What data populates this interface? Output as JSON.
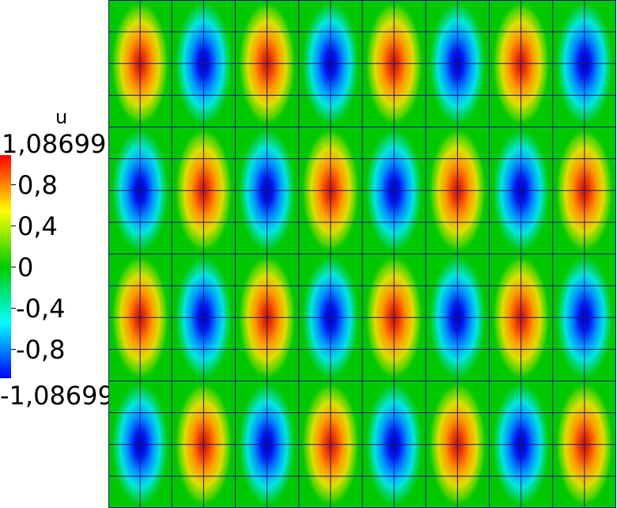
{
  "chart_data": {
    "type": "heatmap",
    "field_name": "u",
    "range": {
      "max": 1.08699,
      "min": -1.08699
    },
    "colorbar": {
      "title": "u",
      "max_label": "1,08699",
      "min_label": "-1,08699",
      "ticks": [
        {
          "value": 0.8,
          "label": "0,8"
        },
        {
          "value": 0.4,
          "label": "0,4"
        },
        {
          "value": 0.0,
          "label": "0"
        },
        {
          "value": -0.4,
          "label": "-0,4"
        },
        {
          "value": -0.8,
          "label": "-0,8"
        }
      ],
      "colors": [
        "#0000ff",
        "#00ffff",
        "#00cc00",
        "#ffff00",
        "#ff0000"
      ],
      "placement": "left"
    },
    "grid": {
      "mesh_columns": 16,
      "mesh_rows": 16,
      "cells_columns": 8,
      "cells_rows": 4,
      "line_color": "#1a1a80"
    },
    "pattern": {
      "peak_value": 1.08699,
      "signs": [
        [
          1,
          -1,
          1,
          -1,
          1,
          -1,
          1,
          -1
        ],
        [
          -1,
          1,
          -1,
          1,
          -1,
          1,
          -1,
          1
        ],
        [
          1,
          -1,
          1,
          -1,
          1,
          -1,
          1,
          -1
        ],
        [
          -1,
          1,
          -1,
          1,
          -1,
          1,
          -1,
          1
        ]
      ]
    },
    "background_color": "#00c800"
  }
}
